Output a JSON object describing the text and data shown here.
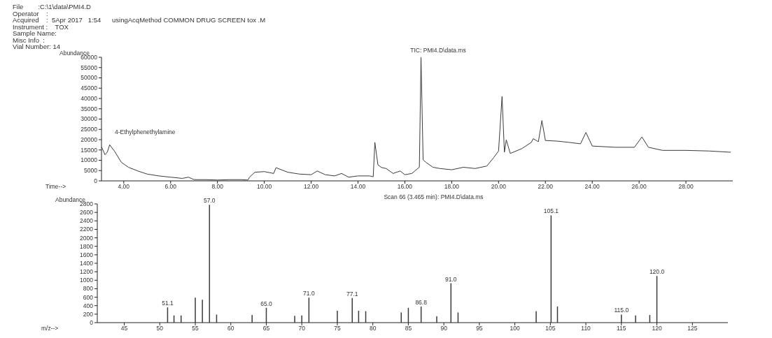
{
  "chart_data": [
    {
      "type": "line",
      "title": "TIC: PMI4.D\\data.ms",
      "subtitle": "File        :C:\\1\\data\\PMI4.D\nOperator    :\nAcquired    :  5Apr 2017   1:54      usingAcqMethod COMMON DRUG SCREEN tox .M\nInstrument :    TOX\nSample Name:\nMisc Info  :\nVial Number: 14",
      "xlabel": "Time-->",
      "ylabel": "Abundance",
      "annotations": [
        "4-Ethylphenethylamine"
      ],
      "color": "#3a3a3a",
      "x": [
        3.06,
        3.2,
        3.3,
        3.4,
        3.6,
        3.9,
        4.2,
        4.6,
        5.0,
        5.5,
        6.0,
        6.5,
        6.76,
        7.0,
        7.5,
        8.0,
        8.5,
        9.0,
        9.3,
        9.37,
        9.6,
        10.0,
        10.4,
        10.5,
        11.0,
        11.5,
        12.0,
        12.26,
        12.6,
        13.0,
        13.3,
        13.6,
        14.0,
        14.5,
        14.65,
        14.72,
        14.85,
        15.0,
        15.2,
        15.5,
        15.8,
        16.0,
        16.3,
        16.55,
        16.62,
        16.69,
        16.78,
        16.9,
        17.2,
        17.5,
        18.0,
        18.5,
        19.0,
        19.5,
        19.8,
        20.0,
        20.15,
        20.25,
        20.33,
        20.5,
        21.0,
        21.4,
        21.48,
        21.7,
        21.85,
        22.0,
        22.5,
        23.0,
        23.5,
        23.73,
        24.0,
        25.0,
        25.8,
        26.12,
        26.4,
        27.0,
        28.0,
        29.0,
        29.9
      ],
      "values": [
        16300,
        12700,
        14000,
        17500,
        14500,
        9000,
        6600,
        4800,
        3300,
        2400,
        1800,
        1200,
        1800,
        600,
        600,
        400,
        600,
        600,
        400,
        1800,
        4200,
        4500,
        3600,
        6400,
        4200,
        3300,
        3000,
        4800,
        3000,
        2400,
        3600,
        1800,
        2400,
        2400,
        2000,
        18700,
        7800,
        6500,
        6000,
        3600,
        4800,
        3000,
        3600,
        6000,
        6600,
        60000,
        10200,
        9000,
        6600,
        6000,
        5400,
        6600,
        6000,
        7200,
        11400,
        14500,
        41000,
        13900,
        19900,
        13300,
        15700,
        18700,
        20500,
        19000,
        29300,
        19600,
        19300,
        18700,
        18000,
        23500,
        16900,
        16300,
        16300,
        21300,
        16300,
        14800,
        14800,
        14500,
        13900
      ],
      "xlim": [
        3.05,
        30.0
      ],
      "xticks": [
        {
          "value": 4,
          "label": "4.00"
        },
        {
          "value": 6,
          "label": "6.00"
        },
        {
          "value": 8,
          "label": "8.00"
        },
        {
          "value": 10,
          "label": "10.00"
        },
        {
          "value": 12,
          "label": "12.00"
        },
        {
          "value": 14,
          "label": "14.00"
        },
        {
          "value": 16,
          "label": "16.00"
        },
        {
          "value": 18,
          "label": "18.00"
        },
        {
          "value": 20,
          "label": "20.00"
        },
        {
          "value": 22,
          "label": "22.00"
        },
        {
          "value": 24,
          "label": "24.00"
        },
        {
          "value": 26,
          "label": "26.00"
        },
        {
          "value": 28,
          "label": "28.00"
        }
      ],
      "ylim": [
        0,
        60000
      ],
      "yticks": [
        0,
        5000,
        10000,
        15000,
        20000,
        25000,
        30000,
        35000,
        40000,
        45000,
        50000,
        55000,
        60000
      ],
      "grid": false,
      "legend": false
    },
    {
      "type": "bar",
      "title": "Scan 66 (3.465 min): PMI4.D\\data.ms",
      "xlabel": "m/z-->",
      "ylabel": "Abundance",
      "color": "#3a3a3a",
      "x": [
        51.1,
        52,
        53,
        55,
        56,
        57.0,
        58,
        63,
        65.0,
        69,
        70,
        71.0,
        75,
        77.1,
        78,
        79,
        84,
        85,
        86.8,
        89,
        91.0,
        92,
        103,
        105.1,
        106,
        115.0,
        117,
        119,
        120.0
      ],
      "values": [
        360,
        170,
        170,
        590,
        540,
        2780,
        190,
        180,
        350,
        160,
        170,
        590,
        280,
        580,
        280,
        270,
        240,
        350,
        380,
        150,
        930,
        240,
        270,
        2530,
        380,
        190,
        170,
        180,
        1100
      ],
      "annotations": [
        {
          "text": "51.1",
          "x": 51.1,
          "y": 360
        },
        {
          "text": "57.0",
          "x": 57.0,
          "y": 2780
        },
        {
          "text": "65.0",
          "x": 65.0,
          "y": 350
        },
        {
          "text": "71.0",
          "x": 71.0,
          "y": 590
        },
        {
          "text": "77.1",
          "x": 77.1,
          "y": 580
        },
        {
          "text": "86.8",
          "x": 86.8,
          "y": 380
        },
        {
          "text": "91.0",
          "x": 91.0,
          "y": 930
        },
        {
          "text": "105.1",
          "x": 105.1,
          "y": 2530
        },
        {
          "text": "115.0",
          "x": 115.0,
          "y": 190
        },
        {
          "text": "120.0",
          "x": 120.0,
          "y": 1100
        }
      ],
      "xlim": [
        41.2,
        130
      ],
      "xticks": [
        45,
        50,
        55,
        60,
        65,
        70,
        75,
        80,
        85,
        90,
        95,
        100,
        105,
        110,
        115,
        120,
        125
      ],
      "ylim": [
        0,
        2800
      ],
      "yticks": [
        0,
        200,
        400,
        600,
        800,
        1000,
        1200,
        1400,
        1600,
        1800,
        2000,
        2200,
        2400,
        2600,
        2800
      ],
      "grid": false,
      "legend": false
    }
  ]
}
